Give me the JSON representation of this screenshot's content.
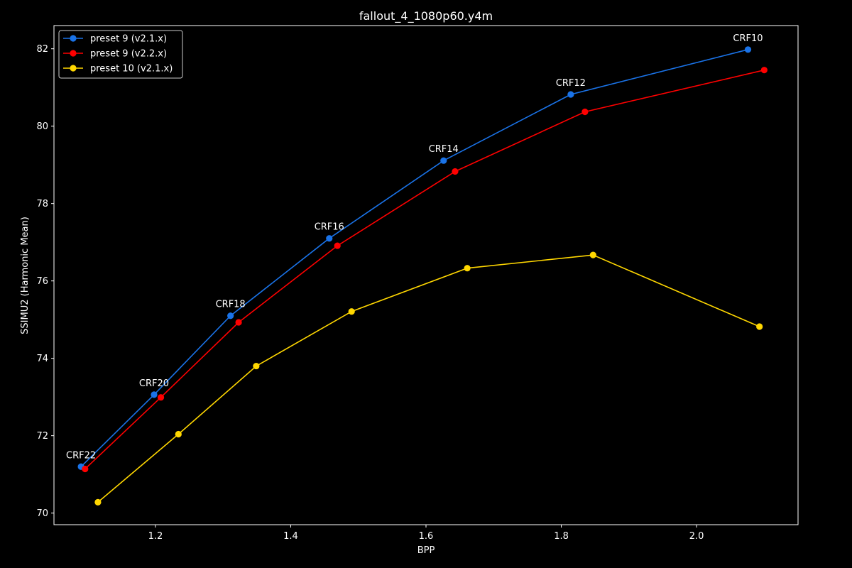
{
  "chart_data": {
    "type": "line",
    "title": "fallout_4_1080p60.y4m",
    "xlabel": "BPP",
    "ylabel": "SSIMU2 (Harmonic Mean)",
    "xlim": [
      1.05,
      2.15
    ],
    "ylim": [
      69.7,
      82.6
    ],
    "xticks": [
      1.2,
      1.4,
      1.6,
      1.8,
      2.0
    ],
    "xtick_labels": [
      "1.2",
      "1.4",
      "1.6",
      "1.8",
      "2.0"
    ],
    "yticks": [
      70,
      72,
      74,
      76,
      78,
      80,
      82
    ],
    "ytick_labels": [
      "70",
      "72",
      "74",
      "76",
      "78",
      "80",
      "82"
    ],
    "grid": false,
    "legend_position": "top-left",
    "background": "#000000",
    "foreground": "#ffffff",
    "series": [
      {
        "name": "preset 9 (v2.1.x)",
        "color": "#1a73e8",
        "x": [
          1.09,
          1.198,
          1.311,
          1.457,
          1.626,
          1.814,
          2.076
        ],
        "y": [
          71.2,
          73.06,
          75.1,
          77.1,
          79.11,
          80.82,
          81.98
        ]
      },
      {
        "name": "preset 9 (v2.2.x)",
        "color": "#ff0000",
        "x": [
          1.096,
          1.208,
          1.323,
          1.469,
          1.643,
          1.835,
          2.1
        ],
        "y": [
          71.14,
          72.99,
          74.93,
          76.91,
          78.83,
          80.37,
          81.45
        ]
      },
      {
        "name": "preset 10 (v2.1.x)",
        "color": "#ffd700",
        "x": [
          1.115,
          1.234,
          1.349,
          1.49,
          1.661,
          1.847,
          2.093
        ],
        "y": [
          70.28,
          72.04,
          73.8,
          75.21,
          76.33,
          76.67,
          74.82
        ]
      }
    ],
    "annotations": [
      {
        "text": "CRF22",
        "x": 1.09,
        "y": 71.2
      },
      {
        "text": "CRF20",
        "x": 1.198,
        "y": 73.06
      },
      {
        "text": "CRF18",
        "x": 1.311,
        "y": 75.1
      },
      {
        "text": "CRF16",
        "x": 1.457,
        "y": 77.1
      },
      {
        "text": "CRF14",
        "x": 1.626,
        "y": 79.11
      },
      {
        "text": "CRF12",
        "x": 1.814,
        "y": 80.82
      },
      {
        "text": "CRF10",
        "x": 2.076,
        "y": 81.98
      }
    ]
  }
}
